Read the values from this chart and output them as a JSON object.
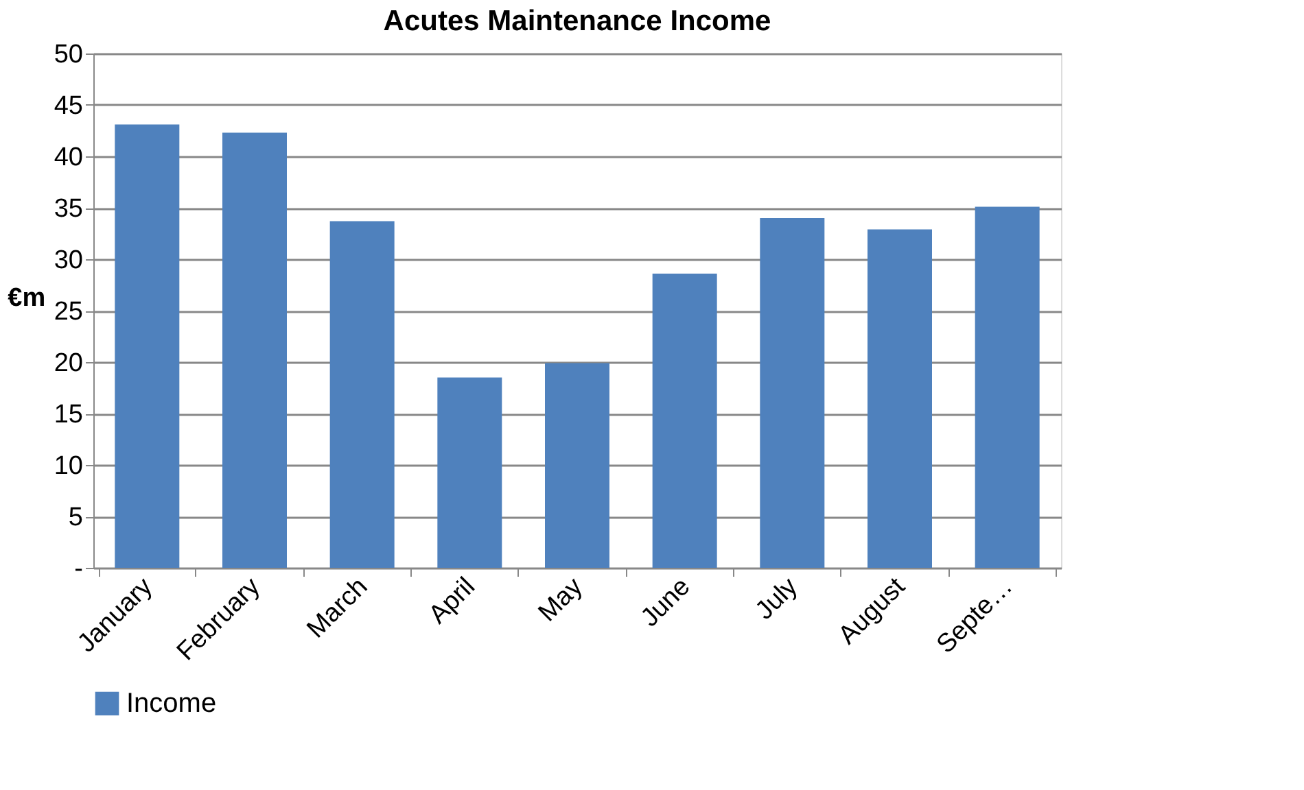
{
  "chart_data": {
    "type": "bar",
    "title": "Acutes Maintenance Income",
    "ylabel": "€m",
    "categories": [
      "January",
      "February",
      "March",
      "April",
      "May",
      "June",
      "July",
      "August",
      "Septe…"
    ],
    "series": [
      {
        "name": "Income",
        "color": "#4f81bd",
        "values": [
          43.1,
          42.3,
          33.7,
          18.5,
          19.9,
          28.6,
          34.0,
          32.9,
          35.1
        ]
      }
    ],
    "ylim": [
      0,
      50
    ],
    "yticks": [
      {
        "value": 0,
        "label": "-"
      },
      5,
      10,
      15,
      20,
      25,
      30,
      35,
      40,
      45,
      50
    ],
    "grid": "y",
    "legend": "bottom"
  }
}
